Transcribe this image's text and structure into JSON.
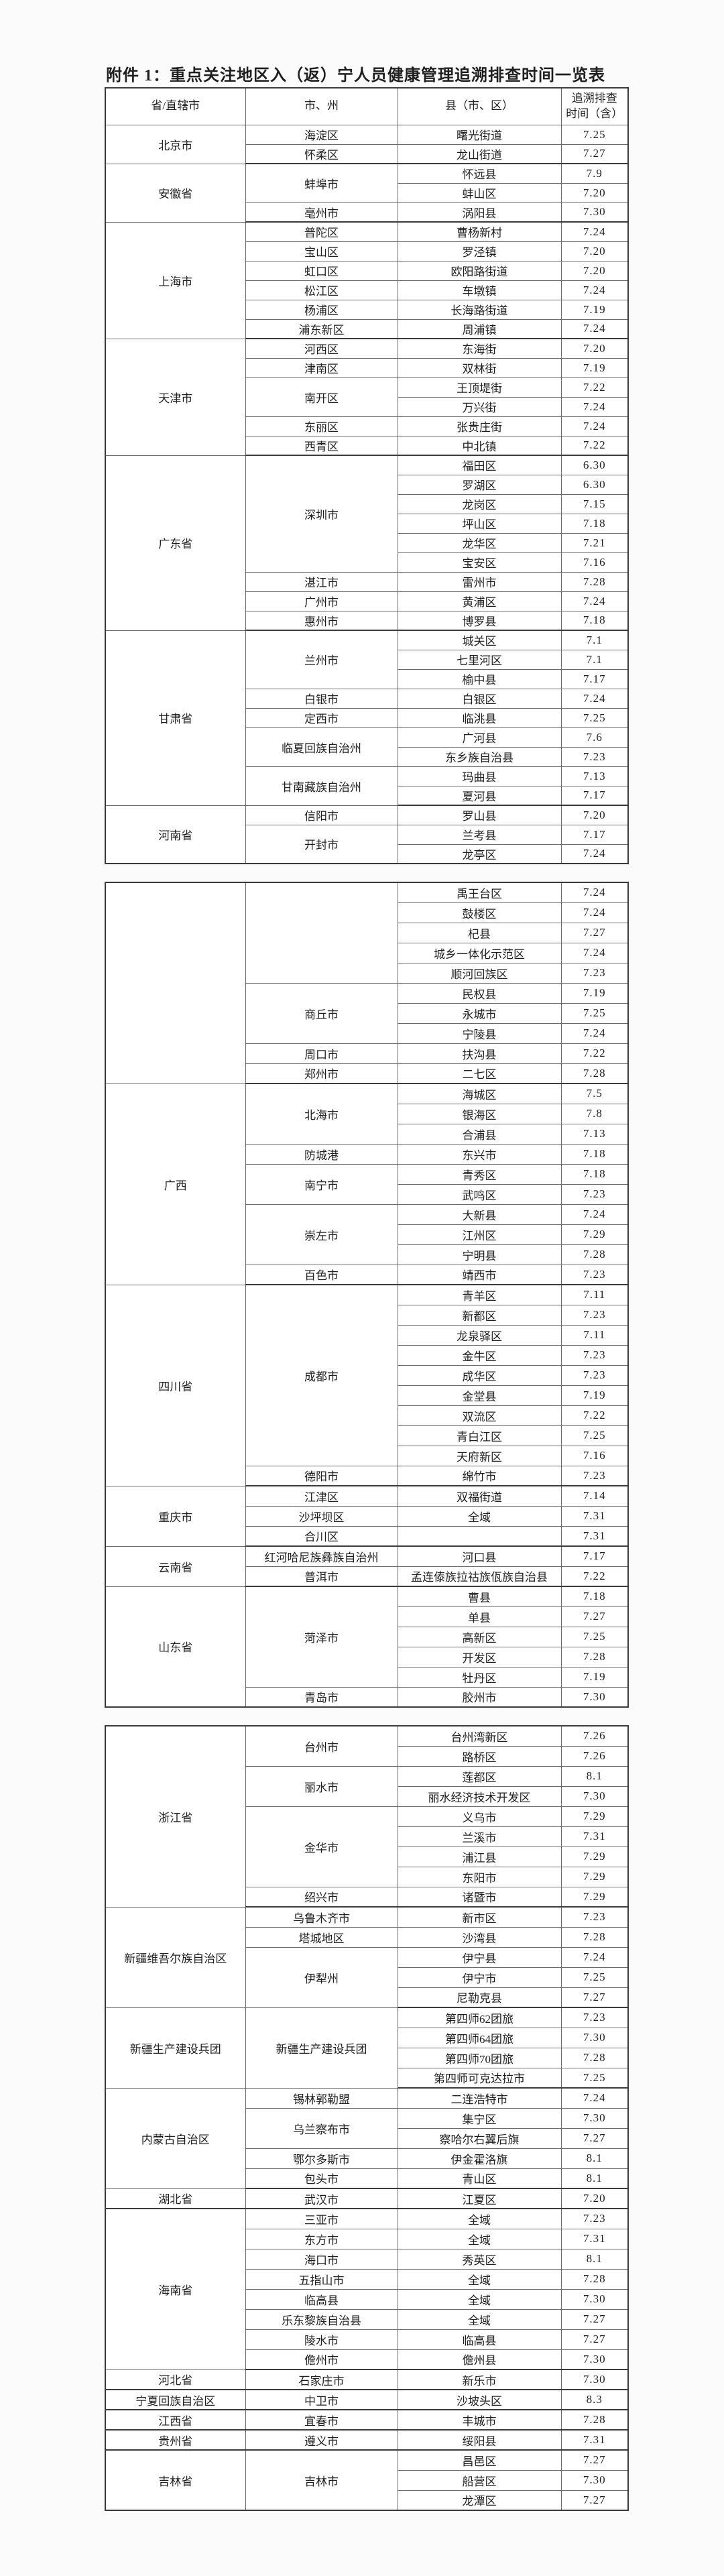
{
  "page": {
    "title": "附件 1：重点关注地区入（返）宁人员健康管理追溯排查时间一览表"
  },
  "colors": {
    "ink": "#1f1f1f",
    "border_inner": "#6a6a6a",
    "border_outer": "#3b3b3b",
    "paper": "#fbfbfb"
  },
  "table": {
    "headers": {
      "province": "省/直辖市",
      "city": "市、州",
      "county": "县（市、区）",
      "time_line1": "追溯排查",
      "time_line2": "时间（含）"
    },
    "blocks": [
      {
        "show_header": true,
        "rows": [
          {
            "p": "北京市",
            "ps": 2,
            "c": "海淀区",
            "cs": 1,
            "n": "曙光街道",
            "t": "7.25"
          },
          {
            "c": "怀柔区",
            "cs": 1,
            "n": "龙山街道",
            "t": "7.27",
            "pe": true
          },
          {
            "p": "安徽省",
            "ps": 3,
            "c": "蚌埠市",
            "cs": 2,
            "n": "怀远县",
            "t": "7.9"
          },
          {
            "n": "蚌山区",
            "t": "7.20"
          },
          {
            "c": "亳州市",
            "cs": 1,
            "n": "涡阳县",
            "t": "7.30",
            "pe": true
          },
          {
            "p": "上海市",
            "ps": 6,
            "c": "普陀区",
            "cs": 1,
            "n": "曹杨新村",
            "t": "7.24"
          },
          {
            "c": "宝山区",
            "cs": 1,
            "n": "罗泾镇",
            "t": "7.20"
          },
          {
            "c": "虹口区",
            "cs": 1,
            "n": "欧阳路街道",
            "t": "7.20"
          },
          {
            "c": "松江区",
            "cs": 1,
            "n": "车墩镇",
            "t": "7.24"
          },
          {
            "c": "杨浦区",
            "cs": 1,
            "n": "长海路街道",
            "t": "7.19"
          },
          {
            "c": "浦东新区",
            "cs": 1,
            "n": "周浦镇",
            "t": "7.24",
            "pe": true
          },
          {
            "p": "天津市",
            "ps": 6,
            "c": "河西区",
            "cs": 1,
            "n": "东海街",
            "t": "7.20"
          },
          {
            "c": "津南区",
            "cs": 1,
            "n": "双林街",
            "t": "7.19"
          },
          {
            "c": "南开区",
            "cs": 2,
            "n": "王顶堤街",
            "t": "7.22"
          },
          {
            "n": "万兴街",
            "t": "7.24"
          },
          {
            "c": "东丽区",
            "cs": 1,
            "n": "张贵庄街",
            "t": "7.24"
          },
          {
            "c": "西青区",
            "cs": 1,
            "n": "中北镇",
            "t": "7.22",
            "pe": true
          },
          {
            "p": "广东省",
            "ps": 9,
            "c": "深圳市",
            "cs": 6,
            "n": "福田区",
            "t": "6.30"
          },
          {
            "n": "罗湖区",
            "t": "6.30"
          },
          {
            "n": "龙岗区",
            "t": "7.15"
          },
          {
            "n": "坪山区",
            "t": "7.18"
          },
          {
            "n": "龙华区",
            "t": "7.21"
          },
          {
            "n": "宝安区",
            "t": "7.16"
          },
          {
            "c": "湛江市",
            "cs": 1,
            "n": "雷州市",
            "t": "7.28"
          },
          {
            "c": "广州市",
            "cs": 1,
            "n": "黄浦区",
            "t": "7.24"
          },
          {
            "c": "惠州市",
            "cs": 1,
            "n": "博罗县",
            "t": "7.18",
            "pe": true
          },
          {
            "p": "甘肃省",
            "ps": 9,
            "c": "兰州市",
            "cs": 3,
            "n": "城关区",
            "t": "7.1"
          },
          {
            "n": "七里河区",
            "t": "7.1"
          },
          {
            "n": "榆中县",
            "t": "7.17"
          },
          {
            "c": "白银市",
            "cs": 1,
            "n": "白银区",
            "t": "7.24"
          },
          {
            "c": "定西市",
            "cs": 1,
            "n": "临洮县",
            "t": "7.25"
          },
          {
            "c": "临夏回族自治州",
            "cs": 2,
            "n": "广河县",
            "t": "7.6"
          },
          {
            "n": "东乡族自治县",
            "t": "7.23"
          },
          {
            "c": "甘南藏族自治州",
            "cs": 2,
            "n": "玛曲县",
            "t": "7.13"
          },
          {
            "n": "夏河县",
            "t": "7.17",
            "pe": true
          },
          {
            "p": "河南省",
            "ps": 3,
            "c": "信阳市",
            "cs": 1,
            "n": "罗山县",
            "t": "7.20"
          },
          {
            "c": "开封市",
            "cs": 2,
            "n": "兰考县",
            "t": "7.17"
          },
          {
            "n": "龙亭区",
            "t": "7.24"
          }
        ]
      },
      {
        "show_header": false,
        "rows": [
          {
            "p": "",
            "ps": 10,
            "c": "",
            "cs": 5,
            "n": "禹王台区",
            "t": "7.24"
          },
          {
            "n": "鼓楼区",
            "t": "7.24"
          },
          {
            "n": "杞县",
            "t": "7.27"
          },
          {
            "n": "城乡一体化示范区",
            "t": "7.24"
          },
          {
            "n": "顺河回族区",
            "t": "7.23"
          },
          {
            "c": "商丘市",
            "cs": 3,
            "n": "民权县",
            "t": "7.19"
          },
          {
            "n": "永城市",
            "t": "7.25"
          },
          {
            "n": "宁陵县",
            "t": "7.24"
          },
          {
            "c": "周口市",
            "cs": 1,
            "n": "扶沟县",
            "t": "7.22"
          },
          {
            "c": "郑州市",
            "cs": 1,
            "n": "二七区",
            "t": "7.28",
            "pe": true
          },
          {
            "p": "广西",
            "ps": 10,
            "c": "北海市",
            "cs": 3,
            "n": "海城区",
            "t": "7.5"
          },
          {
            "n": "银海区",
            "t": "7.8"
          },
          {
            "n": "合浦县",
            "t": "7.13"
          },
          {
            "c": "防城港",
            "cs": 1,
            "n": "东兴市",
            "t": "7.18"
          },
          {
            "c": "南宁市",
            "cs": 2,
            "n": "青秀区",
            "t": "7.18"
          },
          {
            "n": "武鸣区",
            "t": "7.23"
          },
          {
            "c": "崇左市",
            "cs": 3,
            "n": "大新县",
            "t": "7.24"
          },
          {
            "n": "江州区",
            "t": "7.29"
          },
          {
            "n": "宁明县",
            "t": "7.28"
          },
          {
            "c": "百色市",
            "cs": 1,
            "n": "靖西市",
            "t": "7.23",
            "pe": true
          },
          {
            "p": "四川省",
            "ps": 10,
            "c": "成都市",
            "cs": 9,
            "n": "青羊区",
            "t": "7.11"
          },
          {
            "n": "新都区",
            "t": "7.23"
          },
          {
            "n": "龙泉驿区",
            "t": "7.11"
          },
          {
            "n": "金牛区",
            "t": "7.23"
          },
          {
            "n": "成华区",
            "t": "7.23"
          },
          {
            "n": "金堂县",
            "t": "7.19"
          },
          {
            "n": "双流区",
            "t": "7.22"
          },
          {
            "n": "青白江区",
            "t": "7.25"
          },
          {
            "n": "天府新区",
            "t": "7.16"
          },
          {
            "c": "德阳市",
            "cs": 1,
            "n": "绵竹市",
            "t": "7.23",
            "pe": true
          },
          {
            "p": "重庆市",
            "ps": 3,
            "c": "江津区",
            "cs": 1,
            "n": "双福街道",
            "t": "7.14"
          },
          {
            "c": "沙坪坝区",
            "cs": 1,
            "n": "全域",
            "t": "7.31"
          },
          {
            "c": "合川区",
            "cs": 1,
            "n": "",
            "t": "7.31",
            "pe": true
          },
          {
            "p": "云南省",
            "ps": 2,
            "c": "红河哈尼族彝族自治州",
            "cs": 1,
            "n": "河口县",
            "t": "7.17"
          },
          {
            "c": "普洱市",
            "cs": 1,
            "n": "孟连傣族拉祜族佤族自治县",
            "t": "7.22",
            "pe": true
          },
          {
            "p": "山东省",
            "ps": 6,
            "c": "菏泽市",
            "cs": 5,
            "n": "曹县",
            "t": "7.18"
          },
          {
            "n": "单县",
            "t": "7.27"
          },
          {
            "n": "高新区",
            "t": "7.25"
          },
          {
            "n": "开发区",
            "t": "7.28"
          },
          {
            "n": "牡丹区",
            "t": "7.19"
          },
          {
            "c": "青岛市",
            "cs": 1,
            "n": "胶州市",
            "t": "7.30"
          }
        ]
      },
      {
        "show_header": false,
        "rows": [
          {
            "p": "浙江省",
            "ps": 9,
            "c": "台州市",
            "cs": 2,
            "n": "台州湾新区",
            "t": "7.26"
          },
          {
            "n": "路桥区",
            "t": "7.26"
          },
          {
            "c": "丽水市",
            "cs": 2,
            "n": "莲都区",
            "t": "8.1"
          },
          {
            "n": "丽水经济技术开发区",
            "t": "7.30"
          },
          {
            "c": "金华市",
            "cs": 4,
            "n": "义乌市",
            "t": "7.29"
          },
          {
            "n": "兰溪市",
            "t": "7.31"
          },
          {
            "n": "浦江县",
            "t": "7.29"
          },
          {
            "n": "东阳市",
            "t": "7.29"
          },
          {
            "c": "绍兴市",
            "cs": 1,
            "n": "诸暨市",
            "t": "7.29",
            "pe": true
          },
          {
            "p": "新疆维吾尔族自治区",
            "ps": 5,
            "c": "乌鲁木齐市",
            "cs": 1,
            "n": "新市区",
            "t": "7.23"
          },
          {
            "c": "塔城地区",
            "cs": 1,
            "n": "沙湾县",
            "t": "7.28"
          },
          {
            "c": "伊犁州",
            "cs": 3,
            "n": "伊宁县",
            "t": "7.24"
          },
          {
            "n": "伊宁市",
            "t": "7.25"
          },
          {
            "n": "尼勒克县",
            "t": "7.27",
            "pe": true
          },
          {
            "p": "新疆生产建设兵团",
            "ps": 4,
            "c": "新疆生产建设兵团",
            "cs": 4,
            "n": "第四师62团旅",
            "t": "7.23"
          },
          {
            "n": "第四师64团旅",
            "t": "7.30"
          },
          {
            "n": "第四师70团旅",
            "t": "7.28"
          },
          {
            "n": "第四师可克达拉市",
            "t": "7.25",
            "pe": true
          },
          {
            "p": "内蒙古自治区",
            "ps": 5,
            "c": "锡林郭勒盟",
            "cs": 1,
            "n": "二连浩特市",
            "t": "7.24"
          },
          {
            "c": "乌兰察布市",
            "cs": 2,
            "n": "集宁区",
            "t": "7.30"
          },
          {
            "n": "察哈尔右翼后旗",
            "t": "7.27"
          },
          {
            "c": "鄂尔多斯市",
            "cs": 1,
            "n": "伊金霍洛旗",
            "t": "8.1"
          },
          {
            "c": "包头市",
            "cs": 1,
            "n": "青山区",
            "t": "8.1",
            "pe": true
          },
          {
            "p": "湖北省",
            "ps": 1,
            "c": "武汉市",
            "cs": 1,
            "n": "江夏区",
            "t": "7.20",
            "pe": true
          },
          {
            "p": "海南省",
            "ps": 8,
            "c": "三亚市",
            "cs": 1,
            "n": "全域",
            "t": "7.23"
          },
          {
            "c": "东方市",
            "cs": 1,
            "n": "全域",
            "t": "7.31"
          },
          {
            "c": "海口市",
            "cs": 1,
            "n": "秀英区",
            "t": "8.1"
          },
          {
            "c": "五指山市",
            "cs": 1,
            "n": "全域",
            "t": "7.28"
          },
          {
            "c": "临高县",
            "cs": 1,
            "n": "全域",
            "t": "7.30"
          },
          {
            "c": "乐东黎族自治县",
            "cs": 1,
            "n": "全域",
            "t": "7.27"
          },
          {
            "c": "陵水市",
            "cs": 1,
            "n": "临高县",
            "t": "7.27"
          },
          {
            "c": "儋州市",
            "cs": 1,
            "n": "儋州县",
            "t": "7.30",
            "pe": true
          },
          {
            "p": "河北省",
            "ps": 1,
            "c": "石家庄市",
            "cs": 1,
            "n": "新乐市",
            "t": "7.30",
            "pe": true
          },
          {
            "p": "宁夏回族自治区",
            "ps": 1,
            "c": "中卫市",
            "cs": 1,
            "n": "沙坡头区",
            "t": "8.3",
            "pe": true
          },
          {
            "p": "江西省",
            "ps": 1,
            "c": "宜春市",
            "cs": 1,
            "n": "丰城市",
            "t": "7.28",
            "pe": true
          },
          {
            "p": "贵州省",
            "ps": 1,
            "c": "遵义市",
            "cs": 1,
            "n": "绥阳县",
            "t": "7.31",
            "pe": true
          },
          {
            "p": "吉林省",
            "ps": 3,
            "c": "吉林市",
            "cs": 3,
            "n": "昌邑区",
            "t": "7.27"
          },
          {
            "n": "船营区",
            "t": "7.30"
          },
          {
            "n": "龙潭区",
            "t": "7.27"
          }
        ]
      }
    ]
  }
}
